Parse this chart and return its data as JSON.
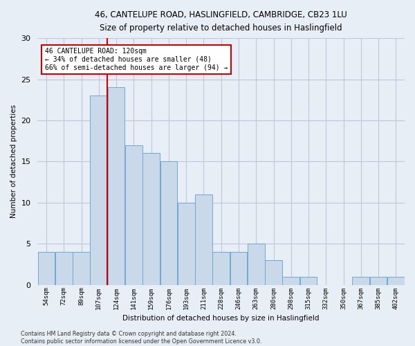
{
  "title_line1": "46, CANTELUPE ROAD, HASLINGFIELD, CAMBRIDGE, CB23 1LU",
  "title_line2": "Size of property relative to detached houses in Haslingfield",
  "xlabel": "Distribution of detached houses by size in Haslingfield",
  "ylabel": "Number of detached properties",
  "bar_labels": [
    "54sqm",
    "72sqm",
    "89sqm",
    "107sqm",
    "124sqm",
    "141sqm",
    "159sqm",
    "176sqm",
    "193sqm",
    "211sqm",
    "228sqm",
    "246sqm",
    "263sqm",
    "280sqm",
    "298sqm",
    "315sqm",
    "332sqm",
    "350sqm",
    "367sqm",
    "385sqm",
    "402sqm"
  ],
  "bar_values": [
    4,
    4,
    4,
    23,
    24,
    17,
    16,
    15,
    10,
    11,
    4,
    4,
    5,
    3,
    1,
    1,
    0,
    0,
    1,
    1,
    1
  ],
  "bar_color": "#c9d9ea",
  "bar_edge_color": "#6fa8d0",
  "vline_color": "#cc0000",
  "annotation_box_text": "46 CANTELUPE ROAD: 120sqm\n← 34% of detached houses are smaller (48)\n66% of semi-detached houses are larger (94) →",
  "annotation_box_color": "#cc0000",
  "annotation_box_facecolor": "white",
  "ylim": [
    0,
    30
  ],
  "yticks": [
    0,
    5,
    10,
    15,
    20,
    25,
    30
  ],
  "grid_color": "#c0c8d8",
  "background_color": "#e8eef6",
  "footnote": "Contains HM Land Registry data © Crown copyright and database right 2024.\nContains public sector information licensed under the Open Government Licence v3.0.",
  "figsize": [
    6.0,
    5.0
  ],
  "dpi": 100
}
